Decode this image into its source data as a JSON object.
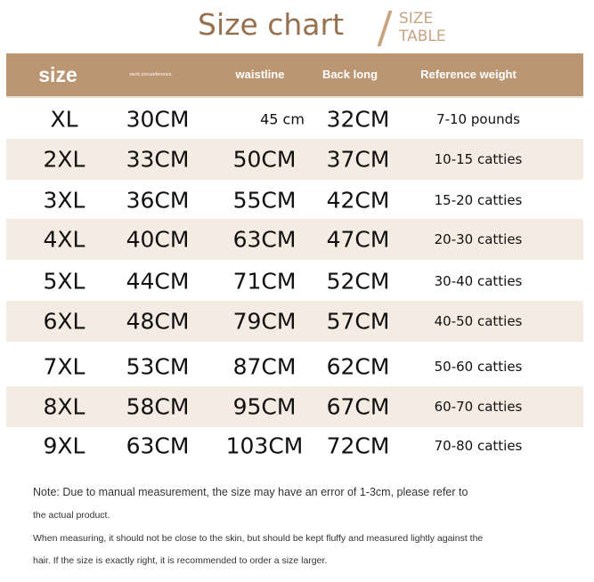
{
  "title": "Size chart",
  "subtitle": [
    "SIZE",
    "TABLE"
  ],
  "colors": {
    "header": "#ba9673",
    "title": "#96704f",
    "alt_row": "#f4ece3"
  },
  "headers": [
    "size",
    "neck circumference",
    "waistline",
    "Back long",
    "Reference weight"
  ],
  "rows": [
    [
      "XL",
      "30CM",
      "45 cm",
      "32CM",
      "7-10 pounds"
    ],
    [
      "2XL",
      "33CM",
      "50CM",
      "37CM",
      "10-15 catties"
    ],
    [
      "3XL",
      "36CM",
      "55CM",
      "42CM",
      "15-20 catties"
    ],
    [
      "4XL",
      "40CM",
      "63CM",
      "47CM",
      "20-30 catties"
    ],
    [
      "5XL",
      "44CM",
      "71CM",
      "52CM",
      "30-40 catties"
    ],
    [
      "6XL",
      "48CM",
      "79CM",
      "57CM",
      "40-50 catties"
    ],
    [
      "7XL",
      "53CM",
      "87CM",
      "62CM",
      "50-60 catties"
    ],
    [
      "8XL",
      "58CM",
      "95CM",
      "67CM",
      "60-70 catties"
    ],
    [
      "9XL",
      "63CM",
      "103CM",
      "72CM",
      "70-80 catties"
    ]
  ],
  "notes": [
    "Note: Due to manual measurement, the size may have an error of 1-3cm, please refer to",
    "the actual product.",
    "When measuring, it should not be close to the skin, but should be kept fluffy and measured lightly against the",
    "hair. If the size is exactly right, it is recommended to order a size larger."
  ]
}
